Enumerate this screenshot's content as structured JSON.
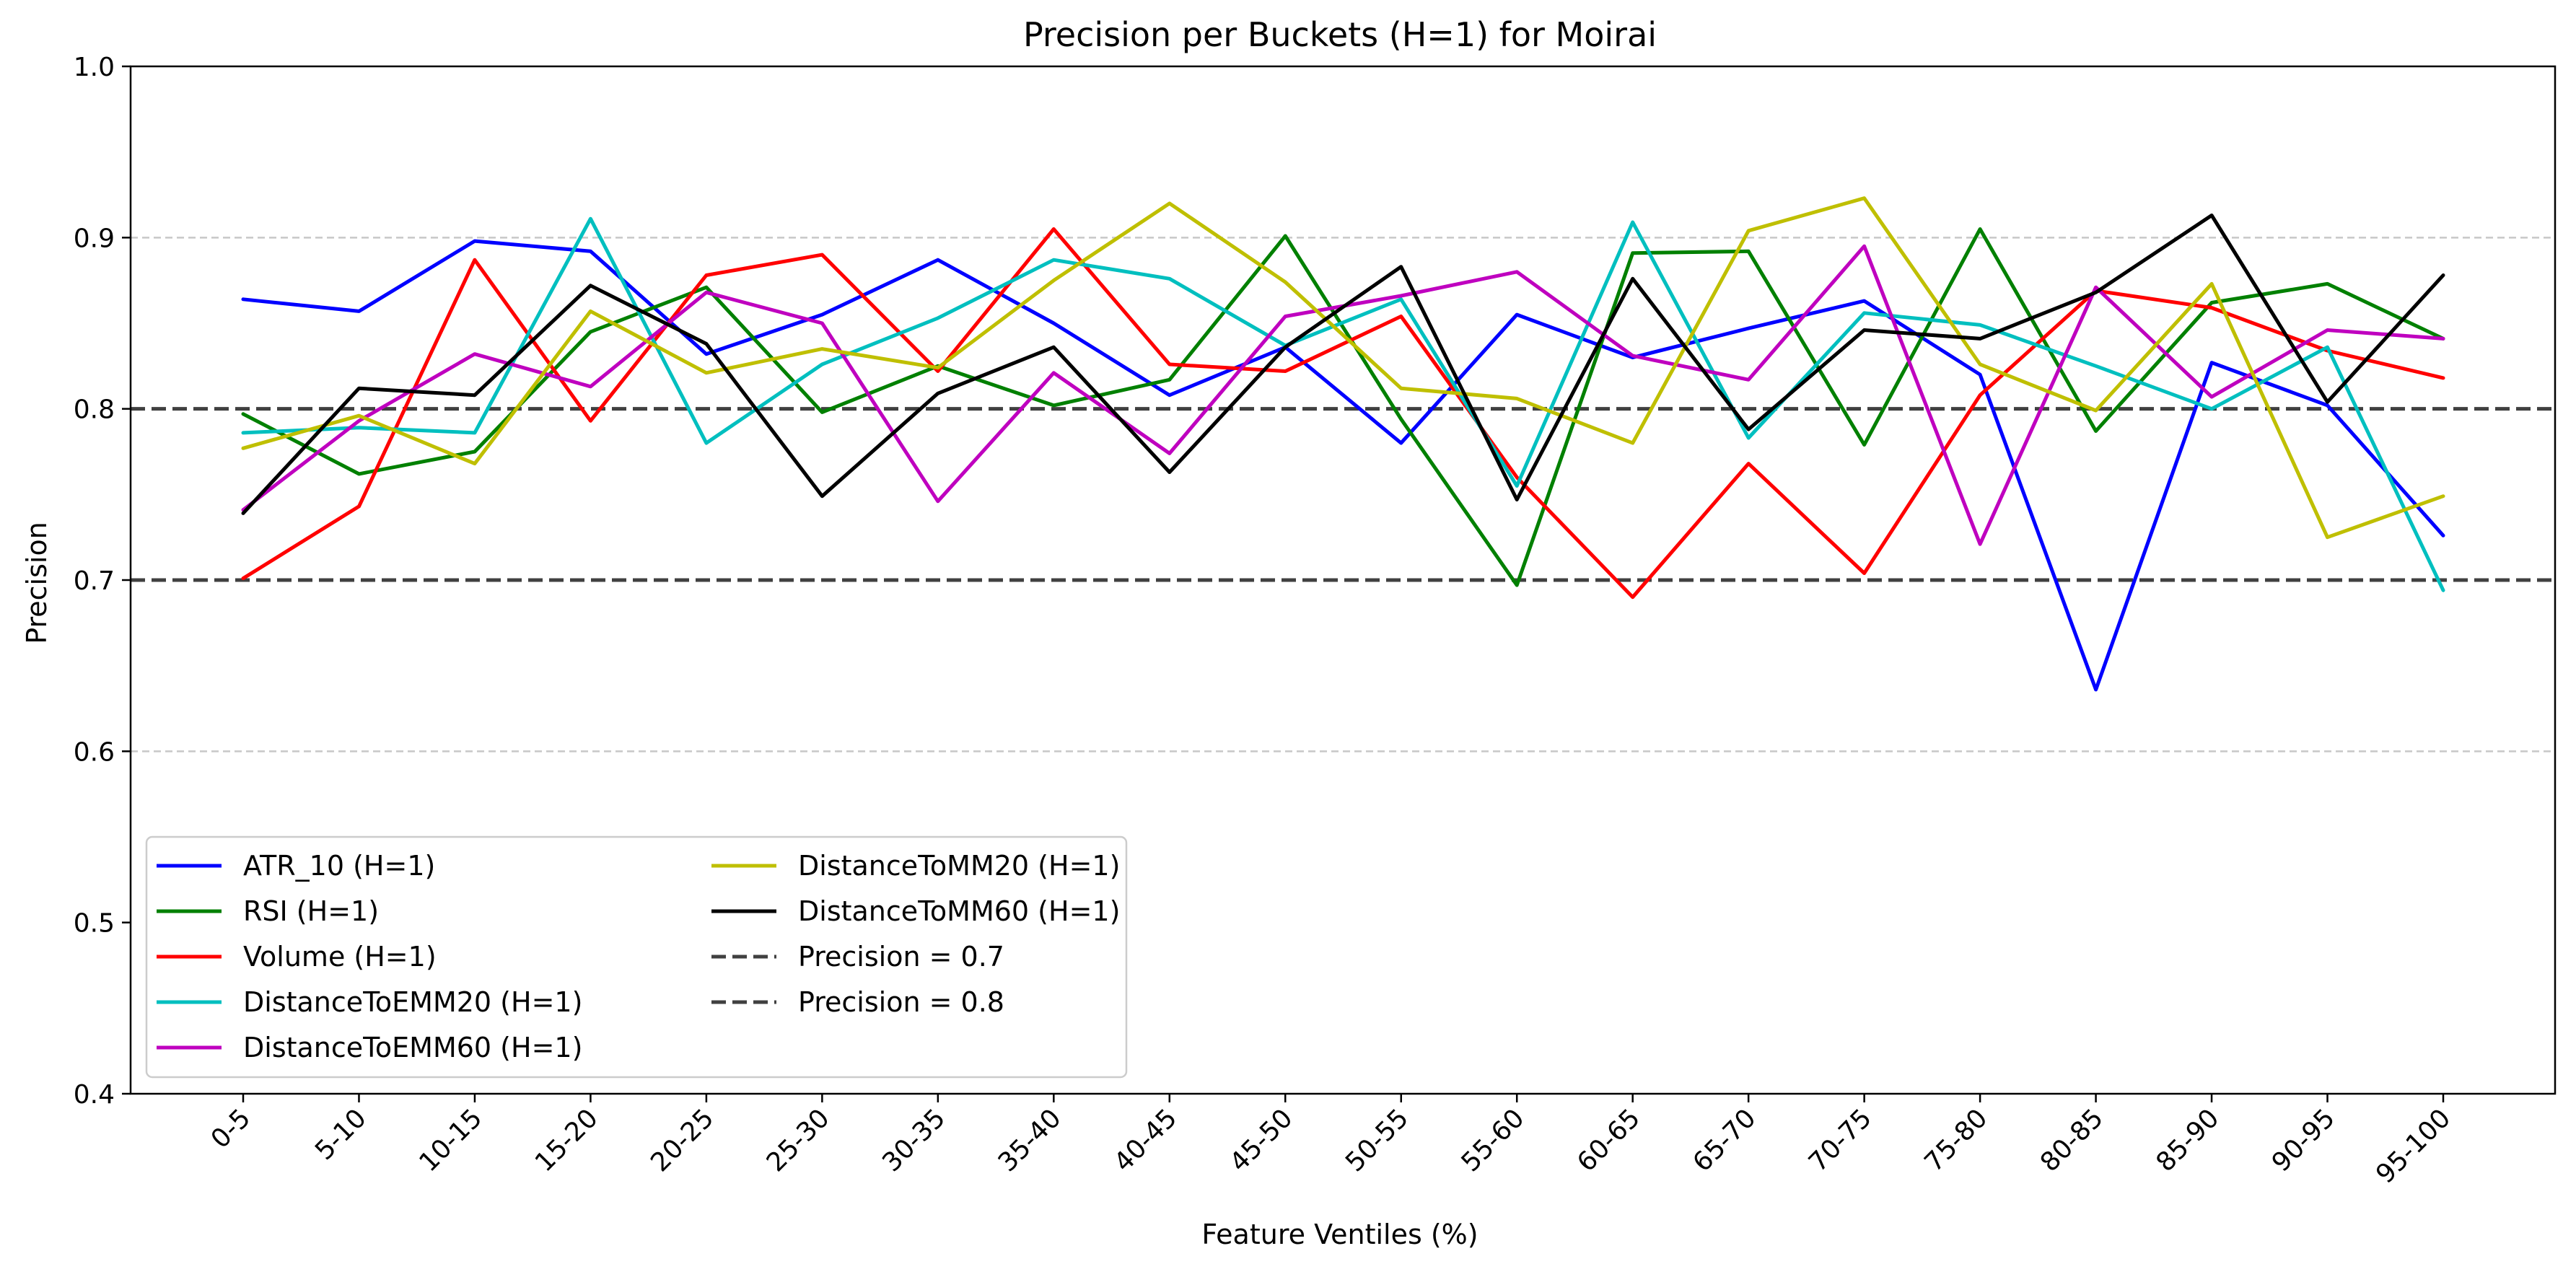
{
  "chart_data": {
    "type": "line",
    "title": "Precision per Buckets (H=1) for Moirai",
    "xlabel": "Feature Ventiles (%)",
    "ylabel": "Precision",
    "ylim": [
      0.4,
      1.0
    ],
    "yticks": [
      "0.4",
      "0.5",
      "0.6",
      "0.7",
      "0.8",
      "0.9",
      "1.0"
    ],
    "grid": "horizontal dashed at 0.6 and 0.9 (light gray)",
    "legend_position": "lower-left",
    "categories": [
      "0-5",
      "5-10",
      "10-15",
      "15-20",
      "20-25",
      "25-30",
      "30-35",
      "35-40",
      "40-45",
      "45-50",
      "50-55",
      "55-60",
      "60-65",
      "65-70",
      "70-75",
      "75-80",
      "80-85",
      "85-90",
      "90-95",
      "95-100"
    ],
    "series": [
      {
        "name": "ATR_10 (H=1)",
        "color": "#0000ff",
        "values": [
          0.864,
          0.857,
          0.898,
          0.892,
          0.832,
          0.855,
          0.887,
          0.85,
          0.808,
          0.836,
          0.78,
          0.855,
          0.83,
          0.847,
          0.863,
          0.82,
          0.636,
          0.827,
          0.802,
          0.726
        ]
      },
      {
        "name": "RSI (H=1)",
        "color": "#008000",
        "values": [
          0.797,
          0.762,
          0.775,
          0.845,
          0.871,
          0.798,
          0.825,
          0.802,
          0.817,
          0.901,
          0.794,
          0.697,
          0.891,
          0.892,
          0.779,
          0.905,
          0.787,
          0.862,
          0.873,
          0.841
        ]
      },
      {
        "name": "Volume (H=1)",
        "color": "#ff0000",
        "values": [
          0.701,
          0.743,
          0.887,
          0.793,
          0.878,
          0.89,
          0.822,
          0.905,
          0.826,
          0.822,
          0.854,
          0.76,
          0.69,
          0.768,
          0.704,
          0.808,
          0.869,
          0.859,
          0.834,
          0.818
        ]
      },
      {
        "name": "DistanceToEMM20 (H=1)",
        "color": "#00bfbf",
        "values": [
          0.786,
          0.789,
          0.786,
          0.911,
          0.78,
          0.826,
          0.853,
          0.887,
          0.876,
          0.837,
          0.864,
          0.755,
          0.909,
          0.783,
          0.856,
          0.849,
          0.825,
          0.8,
          0.836,
          0.694
        ]
      },
      {
        "name": "DistanceToEMM60 (H=1)",
        "color": "#bf00bf",
        "values": [
          0.741,
          0.793,
          0.832,
          0.813,
          0.868,
          0.85,
          0.746,
          0.821,
          0.774,
          0.854,
          0.866,
          0.88,
          0.831,
          0.817,
          0.895,
          0.721,
          0.871,
          0.807,
          0.846,
          0.841
        ]
      },
      {
        "name": "DistanceToMM20 (H=1)",
        "color": "#bfbf00",
        "values": [
          0.777,
          0.796,
          0.768,
          0.857,
          0.821,
          0.835,
          0.824,
          0.875,
          0.92,
          0.874,
          0.812,
          0.806,
          0.78,
          0.904,
          0.923,
          0.826,
          0.799,
          0.873,
          0.725,
          0.749
        ]
      },
      {
        "name": "DistanceToMM60 (H=1)",
        "color": "#000000",
        "values": [
          0.739,
          0.812,
          0.808,
          0.872,
          0.838,
          0.749,
          0.809,
          0.836,
          0.763,
          0.836,
          0.883,
          0.747,
          0.876,
          0.788,
          0.846,
          0.841,
          0.868,
          0.913,
          0.804,
          0.878
        ]
      }
    ],
    "reference_lines": [
      {
        "name": "Precision = 0.7",
        "value": 0.7,
        "color": "#404040",
        "style": "dashed"
      },
      {
        "name": "Precision = 0.8",
        "value": 0.8,
        "color": "#404040",
        "style": "dashed"
      }
    ]
  }
}
